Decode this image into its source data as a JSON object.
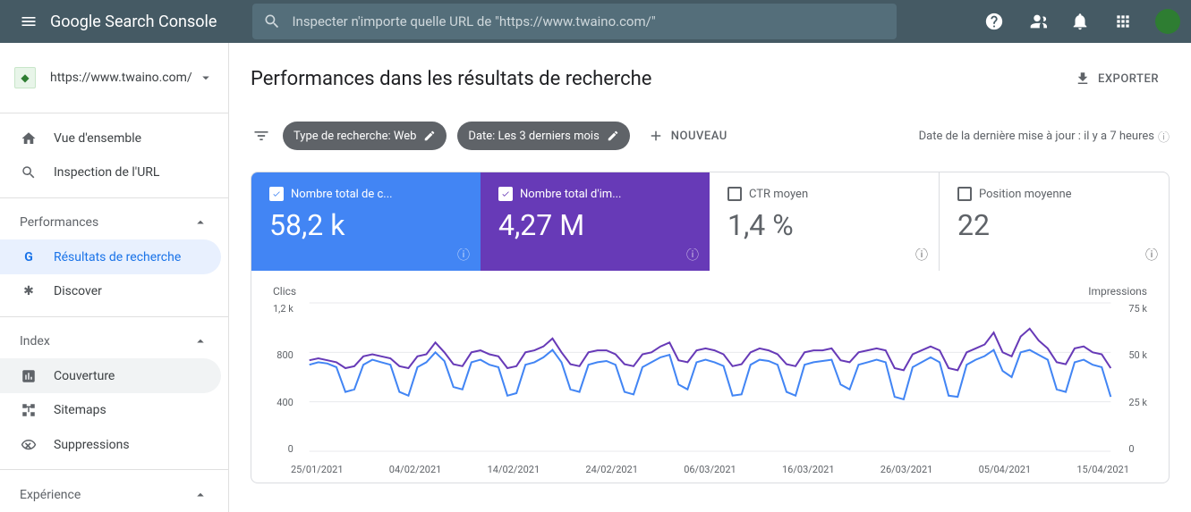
{
  "header": {
    "logo_prefix": "Google",
    "logo_text": "Search Console",
    "search_placeholder": "Inspecter n'importe quelle URL de \"https://www.twaino.com/\""
  },
  "property": {
    "url": "https://www.twaino.com/"
  },
  "sidebar": {
    "overview": "Vue d'ensemble",
    "url_inspection": "Inspection de l'URL",
    "section_performance": "Performances",
    "search_results": "Résultats de recherche",
    "discover": "Discover",
    "section_index": "Index",
    "coverage": "Couverture",
    "sitemaps": "Sitemaps",
    "removals": "Suppressions",
    "section_experience": "Expérience"
  },
  "page": {
    "title": "Performances dans les résultats de recherche",
    "export": "EXPORTER"
  },
  "filters": {
    "search_type": "Type de recherche: Web",
    "date": "Date: Les 3 derniers mois",
    "new": "NOUVEAU",
    "last_update": "Date de la dernière mise à jour : il y a 7 heures"
  },
  "metrics": {
    "clicks": {
      "label": "Nombre total de c...",
      "value": "58,2 k",
      "checked": true,
      "bg": "#4285f4"
    },
    "impressions": {
      "label": "Nombre total d'im...",
      "value": "4,27 M",
      "checked": true,
      "bg": "#673ab7"
    },
    "ctr": {
      "label": "CTR moyen",
      "value": "1,4 %",
      "checked": false
    },
    "position": {
      "label": "Position moyenne",
      "value": "22",
      "checked": false
    }
  },
  "chart": {
    "left_title": "Clics",
    "right_title": "Impressions",
    "left_max": "1,2 k",
    "right_max": "75 k",
    "y_left": [
      "1,2 k",
      "800",
      "400",
      "0"
    ],
    "y_right": [
      "75 k",
      "50 k",
      "25 k",
      "0"
    ],
    "x_labels": [
      "25/01/2021",
      "04/02/2021",
      "14/02/2021",
      "24/02/2021",
      "06/03/2021",
      "16/03/2021",
      "26/03/2021",
      "05/04/2021",
      "15/04/2021"
    ],
    "colors": {
      "clicks": "#4285f4",
      "impressions": "#673ab7",
      "grid": "#e8eaed"
    },
    "clicks_data": [
      700,
      720,
      710,
      680,
      480,
      500,
      700,
      740,
      720,
      700,
      480,
      450,
      680,
      720,
      800,
      730,
      520,
      500,
      720,
      740,
      700,
      680,
      450,
      470,
      700,
      720,
      760,
      820,
      720,
      500,
      480,
      700,
      720,
      730,
      700,
      480,
      460,
      680,
      720,
      760,
      780,
      540,
      500,
      720,
      740,
      720,
      690,
      450,
      460,
      700,
      740,
      730,
      700,
      480,
      450,
      700,
      720,
      730,
      740,
      540,
      500,
      700,
      720,
      740,
      720,
      440,
      420,
      680,
      720,
      760,
      720,
      450,
      440,
      700,
      740,
      770,
      820,
      650,
      600,
      800,
      820,
      780,
      740,
      500,
      480,
      720,
      740,
      700,
      680,
      440
    ],
    "impressions_data": [
      46,
      47,
      46,
      45,
      42,
      43,
      48,
      49,
      48,
      47,
      43,
      42,
      48,
      49,
      55,
      50,
      44,
      43,
      50,
      51,
      49,
      48,
      42,
      43,
      50,
      51,
      53,
      57,
      50,
      44,
      43,
      50,
      51,
      51,
      49,
      44,
      43,
      49,
      50,
      53,
      55,
      46,
      45,
      51,
      52,
      51,
      49,
      43,
      44,
      50,
      52,
      51,
      49,
      44,
      43,
      50,
      51,
      51,
      52,
      46,
      45,
      50,
      51,
      52,
      51,
      42,
      41,
      49,
      51,
      53,
      51,
      42,
      41,
      50,
      52,
      54,
      60,
      50,
      48,
      58,
      62,
      56,
      52,
      45,
      44,
      52,
      53,
      50,
      49,
      42
    ],
    "y_domain_clicks": [
      0,
      1200
    ],
    "y_domain_impr": [
      0,
      75
    ]
  }
}
